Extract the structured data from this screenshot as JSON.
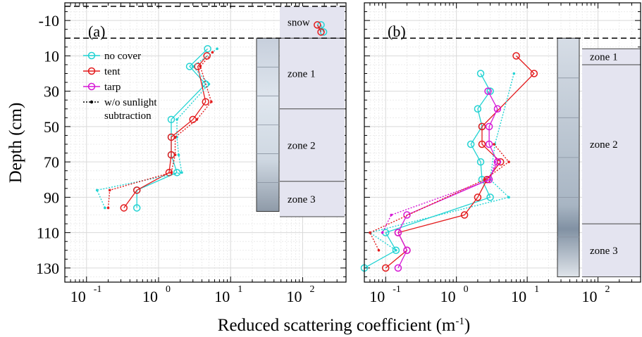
{
  "chart_data": {
    "type": "line",
    "xlabel": "Reduced scattering coefficient (m",
    "xlabel_sup": "-1",
    "xlabel_end": ")",
    "ylabel": "Depth (cm)",
    "x_scale": "log",
    "xlim": [
      0.05,
      400
    ],
    "ylim": [
      138,
      -20
    ],
    "x_ticks": [
      0.1,
      1,
      10,
      100
    ],
    "x_tick_labels": [
      {
        "base": "10",
        "exp": "-1"
      },
      {
        "base": "10",
        "exp": "0"
      },
      {
        "base": "10",
        "exp": "1"
      },
      {
        "base": "10",
        "exp": "2"
      }
    ],
    "y_ticks": [
      -10,
      10,
      30,
      50,
      70,
      90,
      110,
      130
    ],
    "y_tick_labels": [
      "-10",
      "10",
      "30",
      "50",
      "70",
      "90",
      "110",
      "130"
    ],
    "grid": true,
    "legend": {
      "placement": "top-left of panel (a)",
      "entries": [
        {
          "label": "no cover",
          "color": "#22d3d3",
          "style": "solid-circle"
        },
        {
          "label": "tent",
          "color": "#e31a1c",
          "style": "solid-circle"
        },
        {
          "label": "tarp",
          "color": "#d619d6",
          "style": "solid-circle"
        },
        {
          "label": "w/o sunlight",
          "label2": "subtraction",
          "color": "#000000",
          "style": "dotted-dot"
        }
      ]
    },
    "panels": [
      {
        "label": "(a)",
        "surface_line_depth": 0,
        "top_dash_depth": -18,
        "zones": [
          {
            "name": "snow",
            "top": -18,
            "bottom": 0
          },
          {
            "name": "zone 1",
            "top": 0,
            "bottom": 40
          },
          {
            "name": "zone 2",
            "top": 40,
            "bottom": 81
          },
          {
            "name": "zone 3",
            "top": 81,
            "bottom": 101
          }
        ],
        "photo": {
          "top": 0,
          "bottom": 98
        },
        "series": [
          {
            "name": "no cover",
            "color": "#22d3d3",
            "style": "solid",
            "points": [
              [
                180,
                -7.5
              ],
              [
                195,
                -3.5
              ]
            ]
          },
          {
            "name": "tent",
            "color": "#e31a1c",
            "style": "solid",
            "points": [
              [
                160,
                -7.5
              ],
              [
                180,
                -3.5
              ]
            ]
          },
          {
            "name": "no cover",
            "color": "#22d3d3",
            "style": "solid",
            "points": [
              [
                4.8,
                6
              ],
              [
                2.7,
                16
              ],
              [
                4.5,
                26
              ],
              [
                1.5,
                46
              ],
              [
                1.5,
                56
              ],
              [
                1.5,
                66
              ],
              [
                1.8,
                76
              ],
              [
                0.5,
                86
              ],
              [
                0.5,
                96
              ]
            ]
          },
          {
            "name": "tent",
            "color": "#e31a1c",
            "style": "solid",
            "points": [
              [
                4.7,
                10
              ],
              [
                3.5,
                16
              ],
              [
                4.5,
                36
              ],
              [
                3.0,
                46
              ],
              [
                1.5,
                56
              ],
              [
                1.5,
                66
              ],
              [
                1.4,
                76
              ],
              [
                0.5,
                86
              ],
              [
                0.33,
                96
              ]
            ]
          },
          {
            "name": "no cover",
            "color": "#22d3d3",
            "style": "dotted",
            "points": [
              [
                6.5,
                6
              ],
              [
                3.0,
                16
              ],
              [
                5.0,
                26
              ],
              [
                1.8,
                46
              ],
              [
                1.8,
                56
              ],
              [
                1.9,
                66
              ],
              [
                2.1,
                76
              ],
              [
                0.14,
                86
              ],
              [
                0.18,
                96
              ]
            ]
          },
          {
            "name": "tent",
            "color": "#e31a1c",
            "style": "dotted",
            "points": [
              [
                5.6,
                8
              ],
              [
                3.8,
                16
              ],
              [
                5.4,
                36
              ],
              [
                3.4,
                46
              ],
              [
                1.7,
                56
              ],
              [
                1.7,
                66
              ],
              [
                1.5,
                76
              ],
              [
                0.21,
                86
              ],
              [
                0.2,
                96
              ]
            ]
          }
        ]
      },
      {
        "label": "(b)",
        "surface_line_depth": 0,
        "zones": [
          {
            "name": "zone 1",
            "top": 6,
            "bottom": 15
          },
          {
            "name": "zone 2",
            "top": 15,
            "bottom": 105
          },
          {
            "name": "zone 3",
            "top": 105,
            "bottom": 135
          }
        ],
        "photo": {
          "top": 0,
          "bottom": 135
        },
        "series": [
          {
            "name": "no cover",
            "color": "#22d3d3",
            "style": "solid",
            "points": [
              [
                2.2,
                20
              ],
              [
                3.0,
                30
              ],
              [
                2.0,
                40
              ],
              [
                2.3,
                50
              ],
              [
                1.6,
                60
              ],
              [
                2.2,
                70
              ],
              [
                2.3,
                80
              ],
              [
                3.0,
                90
              ],
              [
                0.1,
                110
              ],
              [
                0.14,
                120
              ],
              [
                0.05,
                130
              ]
            ]
          },
          {
            "name": "tent",
            "color": "#e31a1c",
            "style": "solid",
            "points": [
              [
                7.0,
                10
              ],
              [
                12.5,
                20
              ],
              [
                2.3,
                50
              ],
              [
                2.3,
                60
              ],
              [
                4.2,
                70
              ],
              [
                2.7,
                80
              ],
              [
                2.0,
                90
              ],
              [
                1.3,
                100
              ],
              [
                0.15,
                110
              ],
              [
                0.2,
                120
              ],
              [
                0.1,
                130
              ]
            ]
          },
          {
            "name": "tarp",
            "color": "#d619d6",
            "style": "solid",
            "points": [
              [
                2.8,
                30
              ],
              [
                3.8,
                40
              ],
              [
                2.9,
                50
              ],
              [
                2.9,
                60
              ],
              [
                3.8,
                70
              ],
              [
                2.9,
                80
              ],
              [
                0.2,
                100
              ],
              [
                0.15,
                110
              ],
              [
                0.2,
                120
              ],
              [
                0.15,
                130
              ]
            ]
          },
          {
            "name": "no cover",
            "color": "#22d3d3",
            "style": "dotted",
            "points": [
              [
                6.5,
                20
              ],
              [
                3.5,
                60
              ],
              [
                3.0,
                80
              ],
              [
                5.5,
                90
              ],
              [
                0.06,
                110
              ],
              [
                0.14,
                120
              ]
            ]
          },
          {
            "name": "tent",
            "color": "#e31a1c",
            "style": "dotted",
            "points": [
              [
                3.4,
                60
              ],
              [
                5.5,
                70
              ],
              [
                2.5,
                80
              ],
              [
                0.06,
                110
              ],
              [
                0.08,
                120
              ]
            ]
          },
          {
            "name": "tarp",
            "color": "#d619d6",
            "style": "dotted",
            "points": [
              [
                3.5,
                70
              ],
              [
                3.0,
                80
              ],
              [
                0.12,
                100
              ],
              [
                0.09,
                110
              ]
            ]
          }
        ]
      }
    ]
  }
}
